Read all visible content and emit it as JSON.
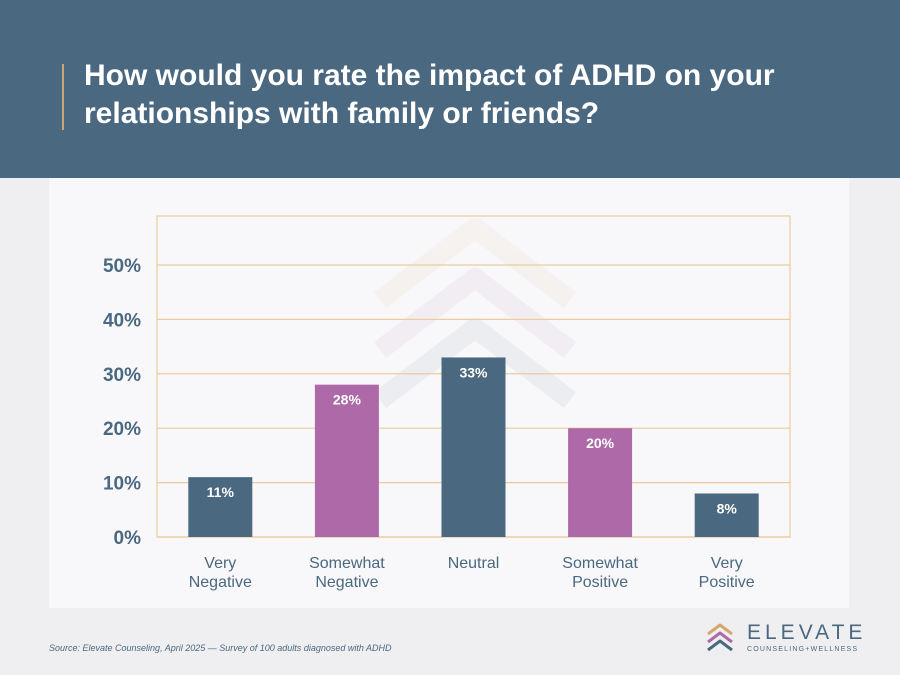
{
  "header": {
    "title": "How would you rate the impact of ADHD on your relationships with family or friends?"
  },
  "footer": {
    "source": "Source: Elevate Counseling, April 2025 — Survey of 100 adults diagnosed with ADHD"
  },
  "logo": {
    "name": "ELEVATE",
    "tagline": "COUNSELING+WELLNESS"
  },
  "colors": {
    "header_bg": "#4a6880",
    "negative_neutral_bar": "#4a6880",
    "somewhat_bar": "#ae69a8",
    "gridline": "#eccb9c",
    "axis_text": "#4a6880"
  },
  "chart_data": {
    "type": "bar",
    "title": "",
    "xlabel": "",
    "ylabel": "",
    "categories": [
      [
        "Very",
        "Negative"
      ],
      [
        "Somewhat",
        "Negative"
      ],
      [
        "Neutral"
      ],
      [
        "Somewhat",
        "Positive"
      ],
      [
        "Very",
        "Positive"
      ]
    ],
    "values": [
      11,
      28,
      33,
      20,
      8
    ],
    "value_labels": [
      "11%",
      "28%",
      "33%",
      "20%",
      "8%"
    ],
    "bar_colors": [
      "#4a6880",
      "#ae69a8",
      "#4a6880",
      "#ae69a8",
      "#4a6880"
    ],
    "ylim": [
      0,
      59
    ],
    "yticks": [
      0,
      10,
      20,
      30,
      40,
      50
    ],
    "ytick_labels": [
      "0%",
      "10%",
      "20%",
      "30%",
      "40%",
      "50%"
    ],
    "grid": true,
    "legend": "none"
  }
}
